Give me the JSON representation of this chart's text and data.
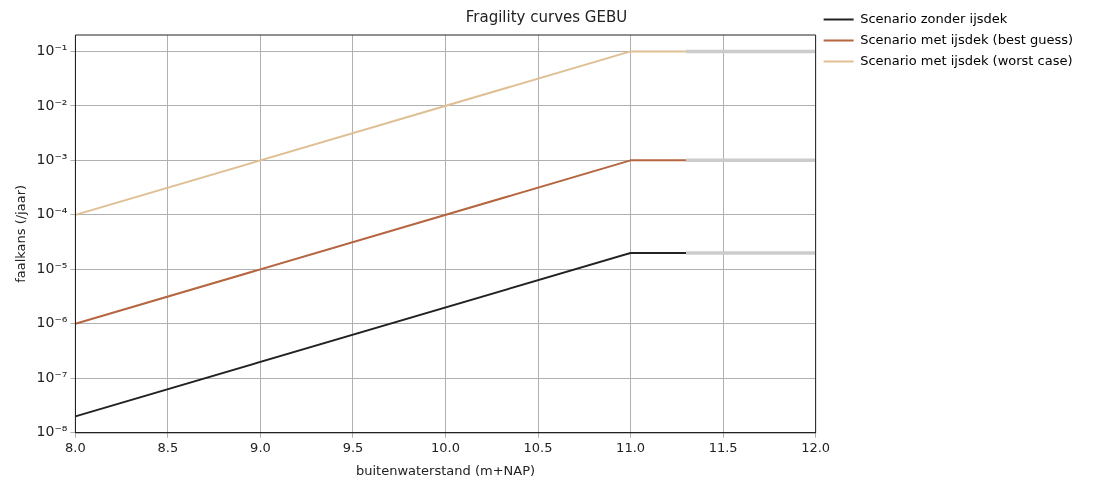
{
  "chart_data": {
    "type": "line",
    "title": "Fragility curves GEBU",
    "xlabel": "buitenwaterstand (m+NAP)",
    "ylabel": "faalkans (/jaar)",
    "log": "y",
    "grid": true,
    "legend": "top right",
    "marker": "none",
    "line_style": "solid",
    "xlim": [
      8.0,
      12.0
    ],
    "xticks": [
      {
        "value": 8,
        "label": "8.0"
      },
      {
        "value": 8.5,
        "label": "8.5"
      },
      {
        "value": 9,
        "label": "9.0"
      },
      {
        "value": 9.5,
        "label": "9.5"
      },
      {
        "value": 10,
        "label": "10.0"
      },
      {
        "value": 10.5,
        "label": "10.5"
      },
      {
        "value": 11,
        "label": "11.0"
      },
      {
        "value": 11.5,
        "label": "11.5"
      },
      {
        "value": 12,
        "label": "12.0"
      }
    ],
    "ylim": [
      1e-08,
      0.2
    ],
    "yticks": [
      {
        "value": 1e-08,
        "label": "10⁻⁸"
      },
      {
        "value": 1e-07,
        "label": "10⁻⁷"
      },
      {
        "value": 1e-06,
        "label": "10⁻⁶"
      },
      {
        "value": 1e-05,
        "label": "10⁻⁵"
      },
      {
        "value": 0.0001,
        "label": "10⁻⁴"
      },
      {
        "value": 0.001,
        "label": "10⁻³"
      },
      {
        "value": 0.01,
        "label": "10⁻²"
      },
      {
        "value": 0.1,
        "label": "10⁻¹"
      }
    ],
    "series": [
      {
        "x": [
          11.3,
          12.0
        ],
        "values": [
          2e-05,
          2e-05
        ],
        "color": "#cccccc"
      },
      {
        "x": [
          11.3,
          12.0
        ],
        "values": [
          0.001,
          0.001
        ],
        "color": "#cccccc"
      },
      {
        "x": [
          11.3,
          12.0
        ],
        "values": [
          0.1,
          0.1
        ],
        "color": "#cccccc"
      },
      {
        "name": "Scenario zonder ijsdek",
        "x": [
          8.0,
          11.0,
          11.3
        ],
        "values": [
          2e-08,
          2e-05,
          2e-05
        ],
        "color": "#222222"
      },
      {
        "name": "Scenario met ijsdek (best guess)",
        "x": [
          8.0,
          11.0,
          11.3
        ],
        "values": [
          1e-06,
          0.001,
          0.001
        ],
        "color": "#b5653f"
      },
      {
        "name": "Scenario met ijsdek (worst case)",
        "x": [
          8.0,
          11.0,
          11.3
        ],
        "values": [
          0.0001,
          0.1,
          0.1
        ],
        "color": "#dfbf94"
      }
    ]
  }
}
